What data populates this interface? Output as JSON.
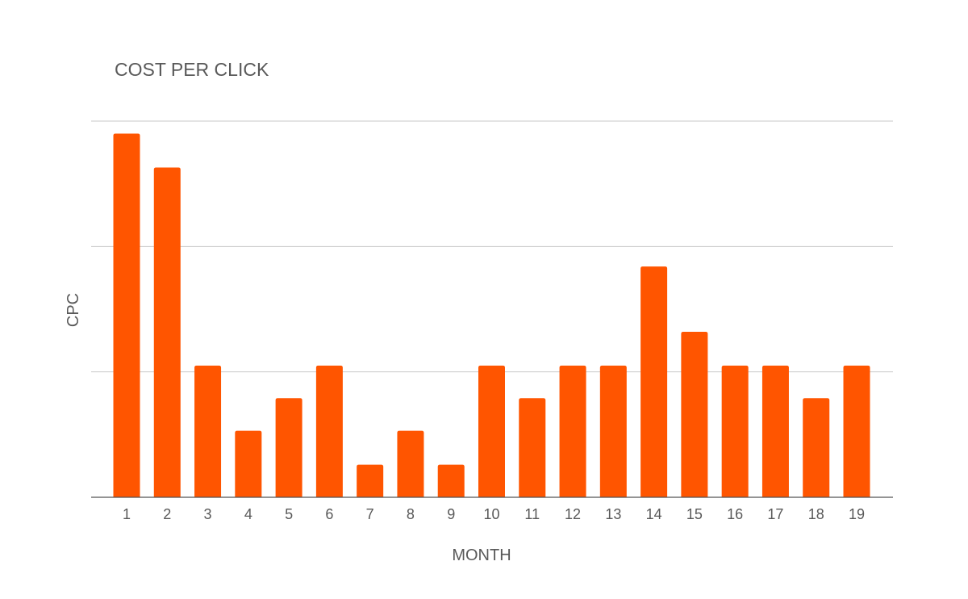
{
  "chart_data": {
    "type": "bar",
    "title": "COST PER CLICK",
    "xlabel": "MONTH",
    "ylabel": "CPC",
    "categories": [
      "1",
      "2",
      "3",
      "4",
      "5",
      "6",
      "7",
      "8",
      "9",
      "10",
      "11",
      "12",
      "13",
      "14",
      "15",
      "16",
      "17",
      "18",
      "19"
    ],
    "series": [
      {
        "values": [
          2.9,
          2.63,
          1.05,
          0.53,
          0.79,
          1.05,
          0.26,
          0.53,
          0.26,
          1.05,
          0.79,
          1.05,
          1.05,
          1.84,
          1.32,
          1.05,
          1.05,
          0.79,
          1.05
        ]
      }
    ],
    "ylim": [
      0,
      3
    ],
    "y_gridlines": [
      0,
      1,
      2,
      3
    ],
    "y_tick_labels_shown": false,
    "grid": true,
    "legend": "none",
    "colors": {
      "bar": "#ff5500",
      "gridline": "#c8c8c8",
      "baseline": "#555555",
      "text": "#595959"
    }
  }
}
